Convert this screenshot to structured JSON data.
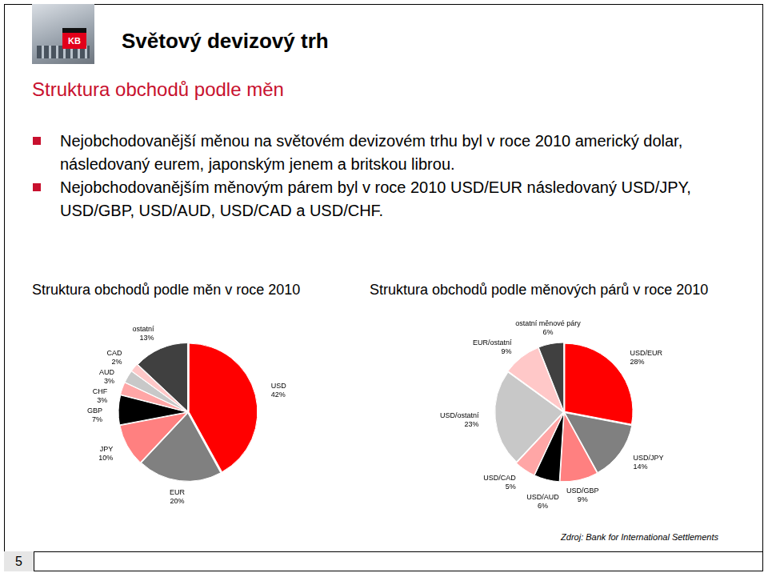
{
  "slide": {
    "logo": "KB",
    "title": "Světový devizový trh",
    "subtitle": "Struktura obchodů podle měn",
    "bullets": [
      "Nejobchodovanější měnou na světovém devizovém trhu byl v roce 2010 americký dolar, následovaný eurem, japonským jenem a britskou librou.",
      "Nejobchodovanějším měnovým párem byl v roce 2010 USD/EUR následovaný USD/JPY, USD/GBP, USD/AUD, USD/CAD a USD/CHF."
    ],
    "source": "Zdroj: Bank for International Settlements",
    "page": 5
  },
  "chart_data": [
    {
      "type": "pie",
      "title": "Struktura obchodů podle měn v roce 2010",
      "categories": [
        "USD",
        "EUR",
        "JPY",
        "GBP",
        "CHF",
        "AUD",
        "CAD",
        "ostatní"
      ],
      "values": [
        42,
        20,
        10,
        7,
        3,
        3,
        2,
        13
      ],
      "value_labels": [
        "42%",
        "20%",
        "10%",
        "7%",
        "3%",
        "3%",
        "2%",
        "13%"
      ],
      "colors": [
        "#ff0000",
        "#808080",
        "#ff8080",
        "#000000",
        "#ffa6a6",
        "#c8c8c8",
        "#ffc8c8",
        "#404040"
      ],
      "data_labels": true
    },
    {
      "type": "pie",
      "title": "Struktura obchodů podle měnových párů v roce 2010",
      "categories": [
        "USD/EUR",
        "USD/JPY",
        "USD/GBP",
        "USD/AUD",
        "USD/CAD",
        "USD/ostatní",
        "EUR/ostatní",
        "ostatní měnové páry"
      ],
      "values": [
        28,
        14,
        9,
        6,
        5,
        23,
        9,
        6
      ],
      "value_labels": [
        "28%",
        "14%",
        "9%",
        "6%",
        "5%",
        "23%",
        "9%",
        "6%"
      ],
      "colors": [
        "#ff0000",
        "#808080",
        "#ff8080",
        "#000000",
        "#ffa6a6",
        "#c8c8c8",
        "#ffc8c8",
        "#404040"
      ],
      "data_labels": true
    }
  ]
}
